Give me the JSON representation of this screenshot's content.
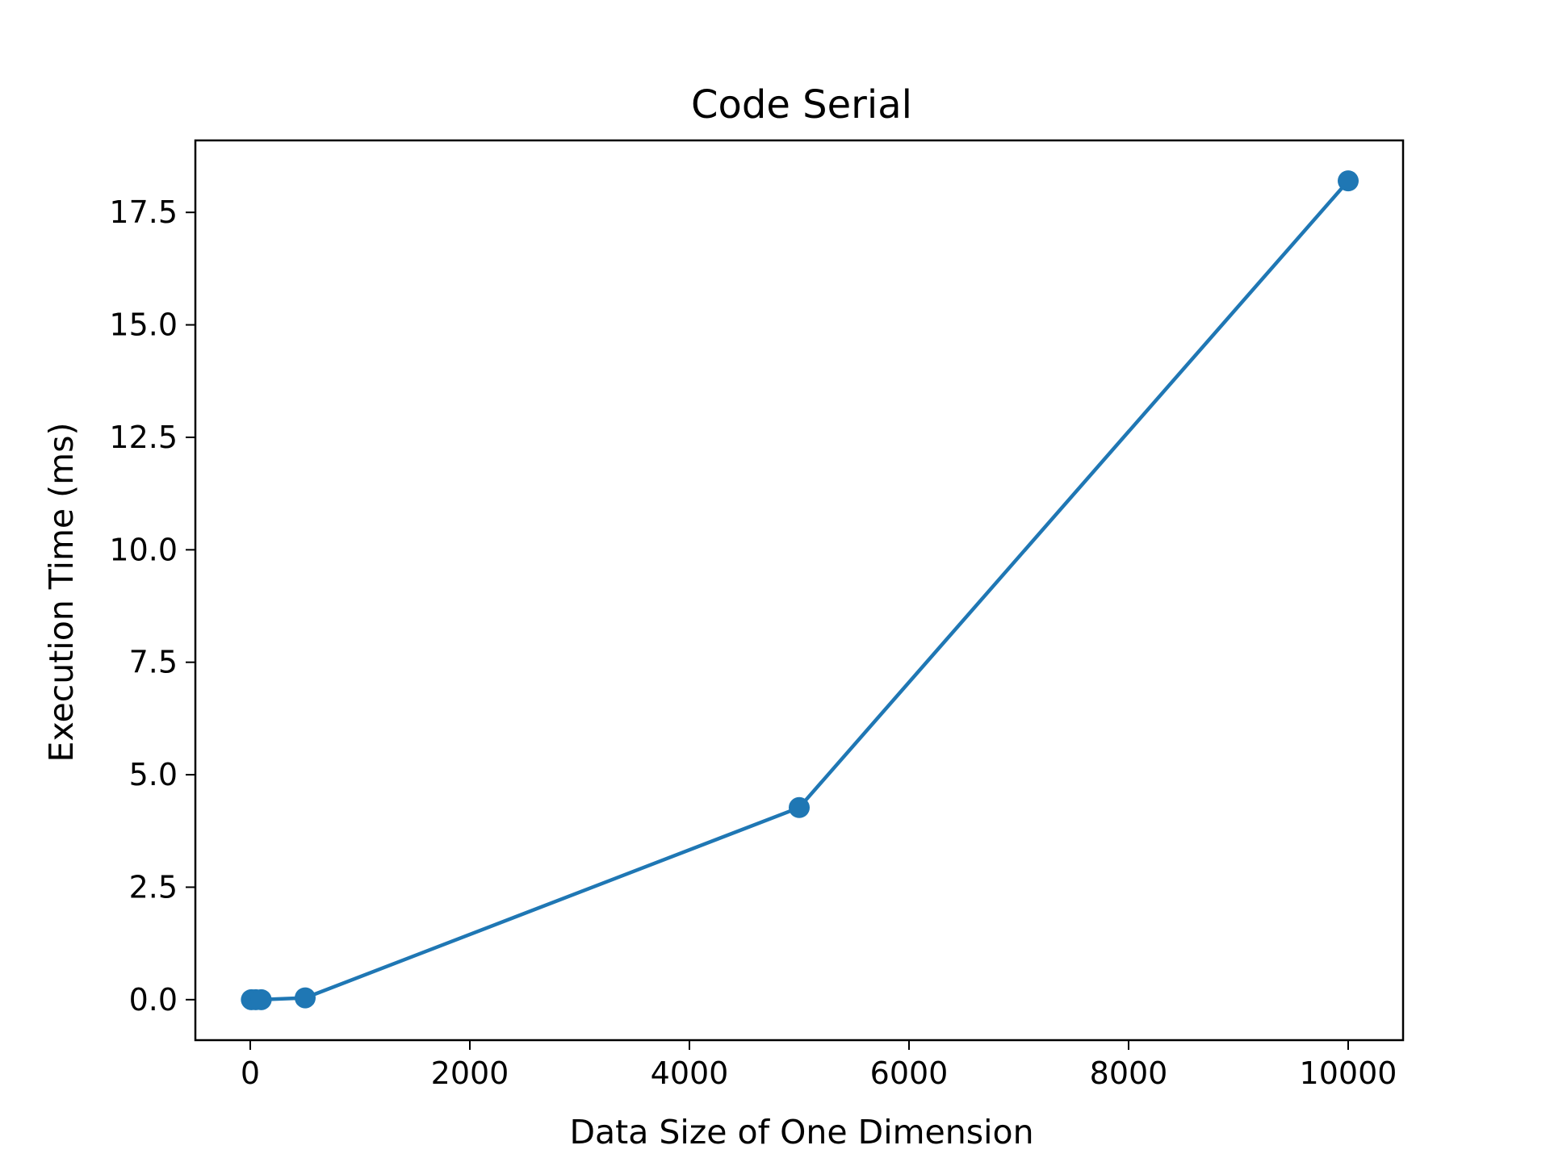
{
  "chart_data": {
    "type": "line",
    "title": "Code Serial",
    "xlabel": "Data Size of One Dimension",
    "ylabel": "Execution Time (ms)",
    "xlim": [
      -500,
      10500
    ],
    "ylim": [
      -0.9,
      19.1
    ],
    "xticks": [
      0,
      2000,
      4000,
      6000,
      8000,
      10000
    ],
    "xtick_labels": [
      "0",
      "2000",
      "4000",
      "6000",
      "8000",
      "10000"
    ],
    "yticks": [
      0.0,
      2.5,
      5.0,
      7.5,
      10.0,
      12.5,
      15.0,
      17.5
    ],
    "ytick_labels": [
      "0.0",
      "2.5",
      "5.0",
      "7.5",
      "10.0",
      "12.5",
      "15.0",
      "17.5"
    ],
    "grid": false,
    "series": [
      {
        "x": [
          10,
          50,
          100,
          500,
          5000,
          10000
        ],
        "y": [
          0.0,
          0.0,
          0.0,
          0.04,
          4.27,
          18.2
        ],
        "color": "#1f77b4",
        "marker": "circle"
      }
    ]
  }
}
